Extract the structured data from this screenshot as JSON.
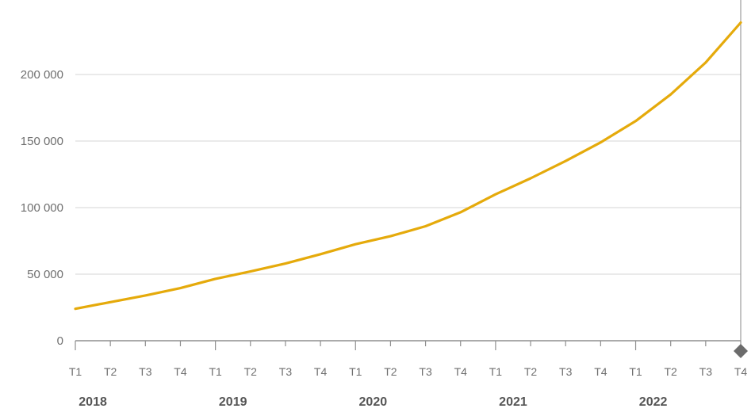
{
  "chart_data": {
    "type": "line",
    "title": "",
    "xlabel": "",
    "ylabel": "",
    "ylim": [
      0,
      240000
    ],
    "yticks": [
      0,
      50000,
      100000,
      150000,
      200000
    ],
    "ytick_labels": [
      "0",
      "50 000",
      "100 000",
      "150 000",
      "200 000"
    ],
    "grid": true,
    "legend": "none",
    "line_color": "#e5aa0b",
    "years": [
      "2018",
      "2019",
      "2020",
      "2021",
      "2022"
    ],
    "x": [
      "T1",
      "T2",
      "T3",
      "T4",
      "T1",
      "T2",
      "T3",
      "T4",
      "T1",
      "T2",
      "T3",
      "T4",
      "T1",
      "T2",
      "T3",
      "T4",
      "T1",
      "T2",
      "T3",
      "T4"
    ],
    "series": [
      {
        "values": [
          24000,
          29000,
          34000,
          39500,
          46500,
          52000,
          58000,
          65000,
          72500,
          78500,
          86000,
          96500,
          110000,
          122000,
          135000,
          149000,
          165000,
          185000,
          209000,
          239000
        ]
      }
    ]
  }
}
